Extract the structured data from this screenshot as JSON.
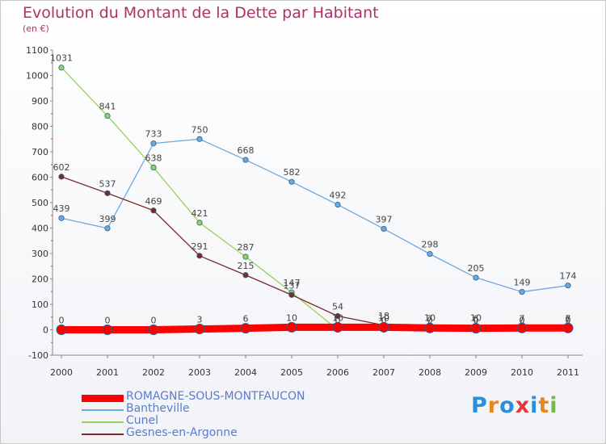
{
  "header": {
    "title": "Evolution du Montant de la Dette par Habitant",
    "unit": "(en €)"
  },
  "logo": {
    "text": "Proxiti",
    "colors": [
      "#2a8fd8",
      "#e8861e",
      "#2a8fd8",
      "#e03a3a",
      "#2a8fd8",
      "#e8861e",
      "#7ab648"
    ]
  },
  "chart_data": {
    "type": "line",
    "title": "Evolution du Montant de la Dette par Habitant",
    "ylabel": "(en €)",
    "xlabel": "",
    "x": [
      "2000",
      "2001",
      "2002",
      "2003",
      "2004",
      "2005",
      "2006",
      "2007",
      "2008",
      "2009",
      "2010",
      "2011"
    ],
    "ylim": [
      -100,
      1100
    ],
    "yticks": [
      -100,
      0,
      100,
      200,
      300,
      400,
      500,
      600,
      700,
      800,
      900,
      1000,
      1100
    ],
    "grid": false,
    "legend": "bottom-left",
    "series": [
      {
        "name": "ROMAGNE-SOUS-MONTFAUCON",
        "color": "#ff0000",
        "values": [
          0,
          0,
          0,
          3,
          6,
          10,
          10,
          10,
          7,
          6,
          7,
          7
        ]
      },
      {
        "name": "Bantheville",
        "color": "#6fa8dc",
        "values": [
          439,
          399,
          733,
          750,
          668,
          582,
          492,
          397,
          298,
          205,
          149,
          174
        ]
      },
      {
        "name": "Cunel",
        "color": "#93d35b",
        "values": [
          1031,
          841,
          638,
          421,
          287,
          147,
          0,
          0,
          0,
          0,
          0,
          0
        ]
      },
      {
        "name": "Gesnes-en-Argonne",
        "color": "#7a2a2a",
        "values": [
          602,
          537,
          469,
          291,
          215,
          137,
          54,
          18,
          10,
          10,
          0,
          6
        ]
      }
    ]
  }
}
